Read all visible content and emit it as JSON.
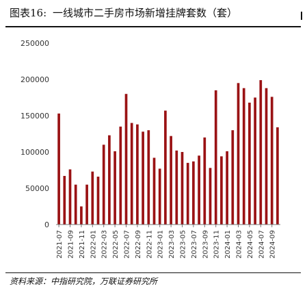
{
  "figure": {
    "title_number": "图表16:",
    "title_text": "一线城市二手房市场新增挂牌套数（套）",
    "source": "资料来源：中指研究院，万联证券研究所"
  },
  "chart_data": {
    "type": "bar",
    "title": "",
    "xlabel": "",
    "ylabel": "",
    "ylim": [
      0,
      250000
    ],
    "yticks": [
      0,
      50000,
      100000,
      150000,
      200000,
      250000
    ],
    "grid": false,
    "legend": "none",
    "bar_color": "#9a1214",
    "categories": [
      "2021-07",
      "2021-08",
      "2021-09",
      "2021-10",
      "2021-11",
      "2021-12",
      "2022-01",
      "2022-02",
      "2022-03",
      "2022-04",
      "2022-05",
      "2022-06",
      "2022-07",
      "2022-08",
      "2022-09",
      "2022-10",
      "2022-11",
      "2022-12",
      "2023-01",
      "2023-02",
      "2023-03",
      "2023-04",
      "2023-05",
      "2023-06",
      "2023-07",
      "2023-08",
      "2023-09",
      "2023-10",
      "2023-11",
      "2023-12",
      "2024-01",
      "2024-02",
      "2024-03",
      "2024-04",
      "2024-05",
      "2024-06",
      "2024-07",
      "2024-08",
      "2024-09",
      "2024-10"
    ],
    "tick_labels": [
      "2021-07",
      "2021-09",
      "2021-11",
      "2022-01",
      "2022-03",
      "2022-05",
      "2022-07",
      "2022-09",
      "2022-11",
      "2023-01",
      "2023-03",
      "2023-05",
      "2023-07",
      "2023-09",
      "2023-11",
      "2024-01",
      "2024-03",
      "2024-05",
      "2024-07",
      "2024-09"
    ],
    "values": [
      153000,
      67000,
      76000,
      55000,
      25000,
      55000,
      73000,
      66000,
      110000,
      123000,
      101000,
      135000,
      180000,
      140000,
      138000,
      128000,
      130000,
      92000,
      77000,
      157000,
      122000,
      102000,
      100000,
      85000,
      87000,
      95000,
      120000,
      78000,
      185000,
      94000,
      101000,
      130000,
      195000,
      188000,
      168000,
      175000,
      199000,
      188000,
      176000,
      134000
    ]
  }
}
